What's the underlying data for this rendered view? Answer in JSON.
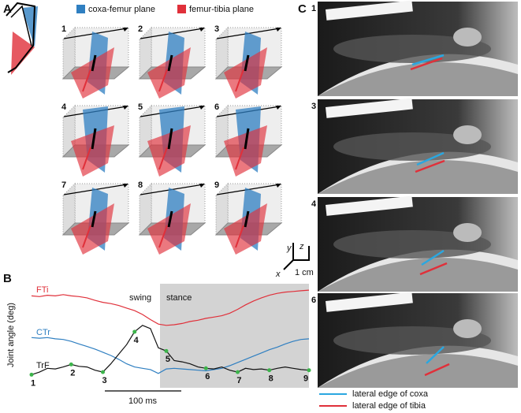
{
  "panel_a": {
    "label": "A",
    "legend": [
      {
        "name": "coxa-femur plane",
        "color": "#2f7fc1"
      },
      {
        "name": "femur-tibia plane",
        "color": "#e0303a"
      }
    ],
    "frames": [
      "1",
      "2",
      "3",
      "4",
      "5",
      "6",
      "7",
      "8",
      "9"
    ],
    "axes": {
      "x": "x",
      "y": "y",
      "z": "z",
      "scale": "1 cm"
    }
  },
  "chart_data": {
    "type": "line",
    "label": "B",
    "ylabel": "Joint angle (deg)",
    "ylim": [
      0,
      160
    ],
    "swing": "swing",
    "stance": "stance",
    "scale_bar": "100 ms",
    "series": [
      {
        "name": "FTi",
        "color": "#e0303a",
        "values": [
          141,
          140,
          142,
          141,
          143,
          141,
          140,
          138,
          134,
          131,
          129,
          126,
          122,
          118,
          112,
          104,
          97,
          95,
          96,
          98,
          101,
          103,
          106,
          108,
          110,
          114,
          120,
          127,
          133,
          138,
          142,
          145,
          147,
          148,
          149,
          150
        ]
      },
      {
        "name": "CTr",
        "color": "#2f7fc1",
        "values": [
          76,
          75,
          76,
          74,
          73,
          70,
          66,
          62,
          58,
          53,
          48,
          42,
          35,
          30,
          28,
          26,
          20,
          27,
          28,
          27,
          26,
          25,
          24,
          26,
          28,
          32,
          37,
          42,
          47,
          52,
          57,
          61,
          66,
          70,
          73,
          74
        ]
      },
      {
        "name": "TrF",
        "color": "#111111",
        "values": [
          18,
          22,
          28,
          27,
          30,
          34,
          31,
          30,
          25,
          22,
          35,
          50,
          65,
          85,
          95,
          90,
          60,
          55,
          40,
          38,
          35,
          30,
          28,
          27,
          30,
          25,
          22,
          28,
          26,
          27,
          25,
          28,
          30,
          28,
          26,
          25
        ]
      }
    ],
    "point_labels": [
      "1",
      null,
      null,
      null,
      null,
      "2",
      null,
      null,
      null,
      "3",
      null,
      null,
      null,
      "4",
      null,
      null,
      null,
      "5",
      null,
      null,
      null,
      null,
      "6",
      null,
      null,
      null,
      "7",
      null,
      null,
      null,
      "8",
      null,
      null,
      null,
      null,
      "9"
    ]
  },
  "panel_c": {
    "label": "C",
    "frames": [
      "1",
      "3",
      "4",
      "6"
    ],
    "legend": [
      {
        "name": "lateral edge of coxa",
        "color": "#2aa7e0"
      },
      {
        "name": "lateral edge of tibia",
        "color": "#e0303a"
      }
    ]
  }
}
